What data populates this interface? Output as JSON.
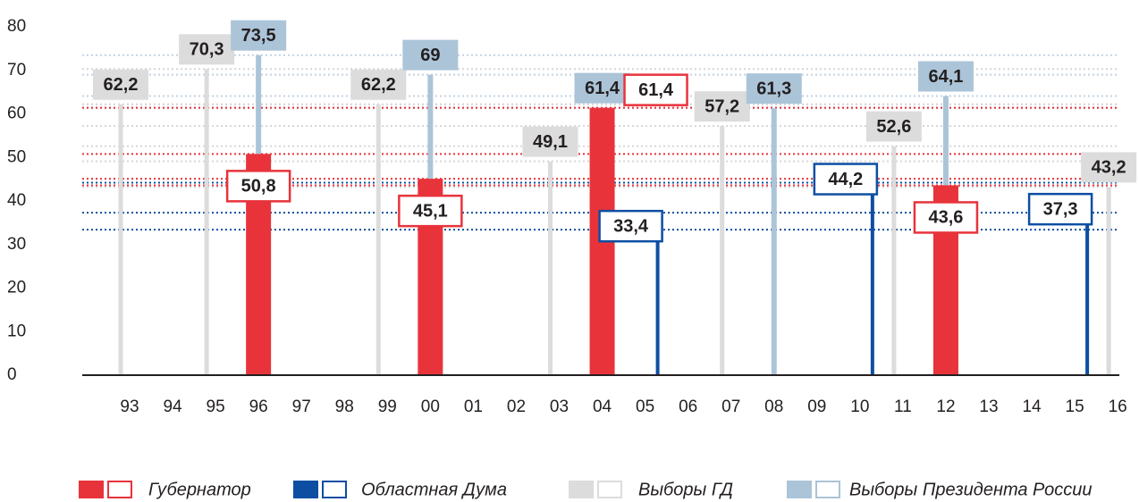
{
  "chart_data": {
    "type": "bar",
    "categories": [
      "93",
      "94",
      "95",
      "96",
      "97",
      "98",
      "99",
      "00",
      "01",
      "02",
      "03",
      "04",
      "05",
      "06",
      "07",
      "08",
      "09",
      "10",
      "11",
      "12",
      "13",
      "14",
      "15",
      "16"
    ],
    "ylim": [
      0,
      80
    ],
    "yticks": [
      0,
      10,
      20,
      30,
      40,
      50,
      60,
      70,
      80
    ],
    "series": [
      {
        "name": "Губернатор",
        "color": "#e8333b",
        "values": [
          null,
          null,
          null,
          50.8,
          null,
          null,
          null,
          45.1,
          null,
          null,
          null,
          61.4,
          null,
          null,
          null,
          null,
          null,
          null,
          null,
          43.6,
          null,
          null,
          null,
          null
        ],
        "value_labels": [
          null,
          null,
          null,
          "50,8",
          null,
          null,
          null,
          "45,1",
          null,
          null,
          null,
          "61,4",
          null,
          null,
          null,
          null,
          null,
          null,
          null,
          "43,6",
          null,
          null,
          null,
          null
        ]
      },
      {
        "name": "Областная Дума",
        "color": "#0d4ea3",
        "values": [
          null,
          null,
          null,
          null,
          null,
          null,
          null,
          null,
          null,
          null,
          null,
          null,
          33.4,
          null,
          null,
          null,
          null,
          44.2,
          null,
          null,
          null,
          null,
          37.3,
          null
        ],
        "value_labels": [
          null,
          null,
          null,
          null,
          null,
          null,
          null,
          null,
          null,
          null,
          null,
          null,
          "33,4",
          null,
          null,
          null,
          null,
          "44,2",
          null,
          null,
          null,
          null,
          "37,3",
          null
        ]
      },
      {
        "name": "Выборы ГД",
        "color": "#dcdcdc",
        "values": [
          62.2,
          null,
          70.3,
          null,
          null,
          null,
          62.2,
          null,
          null,
          null,
          49.1,
          null,
          null,
          null,
          57.2,
          null,
          null,
          null,
          52.6,
          null,
          null,
          null,
          null,
          43.2
        ],
        "value_labels": [
          "62,2",
          null,
          "70,3",
          null,
          null,
          null,
          "62,2",
          null,
          null,
          null,
          "49,1",
          null,
          null,
          null,
          "57,2",
          null,
          null,
          null,
          "52,6",
          null,
          null,
          null,
          null,
          "43,2"
        ]
      },
      {
        "name": "Выборы Президента России",
        "color": "#abc4d8",
        "values": [
          null,
          null,
          null,
          73.5,
          null,
          null,
          null,
          69,
          null,
          null,
          null,
          61.4,
          null,
          null,
          null,
          61.3,
          null,
          null,
          null,
          64.1,
          null,
          null,
          null,
          null
        ],
        "value_labels": [
          null,
          null,
          null,
          "73,5",
          null,
          null,
          null,
          "69",
          null,
          null,
          null,
          "61,4",
          null,
          null,
          null,
          "61,3",
          null,
          null,
          null,
          "64,1",
          null,
          null,
          null,
          null
        ]
      }
    ]
  }
}
